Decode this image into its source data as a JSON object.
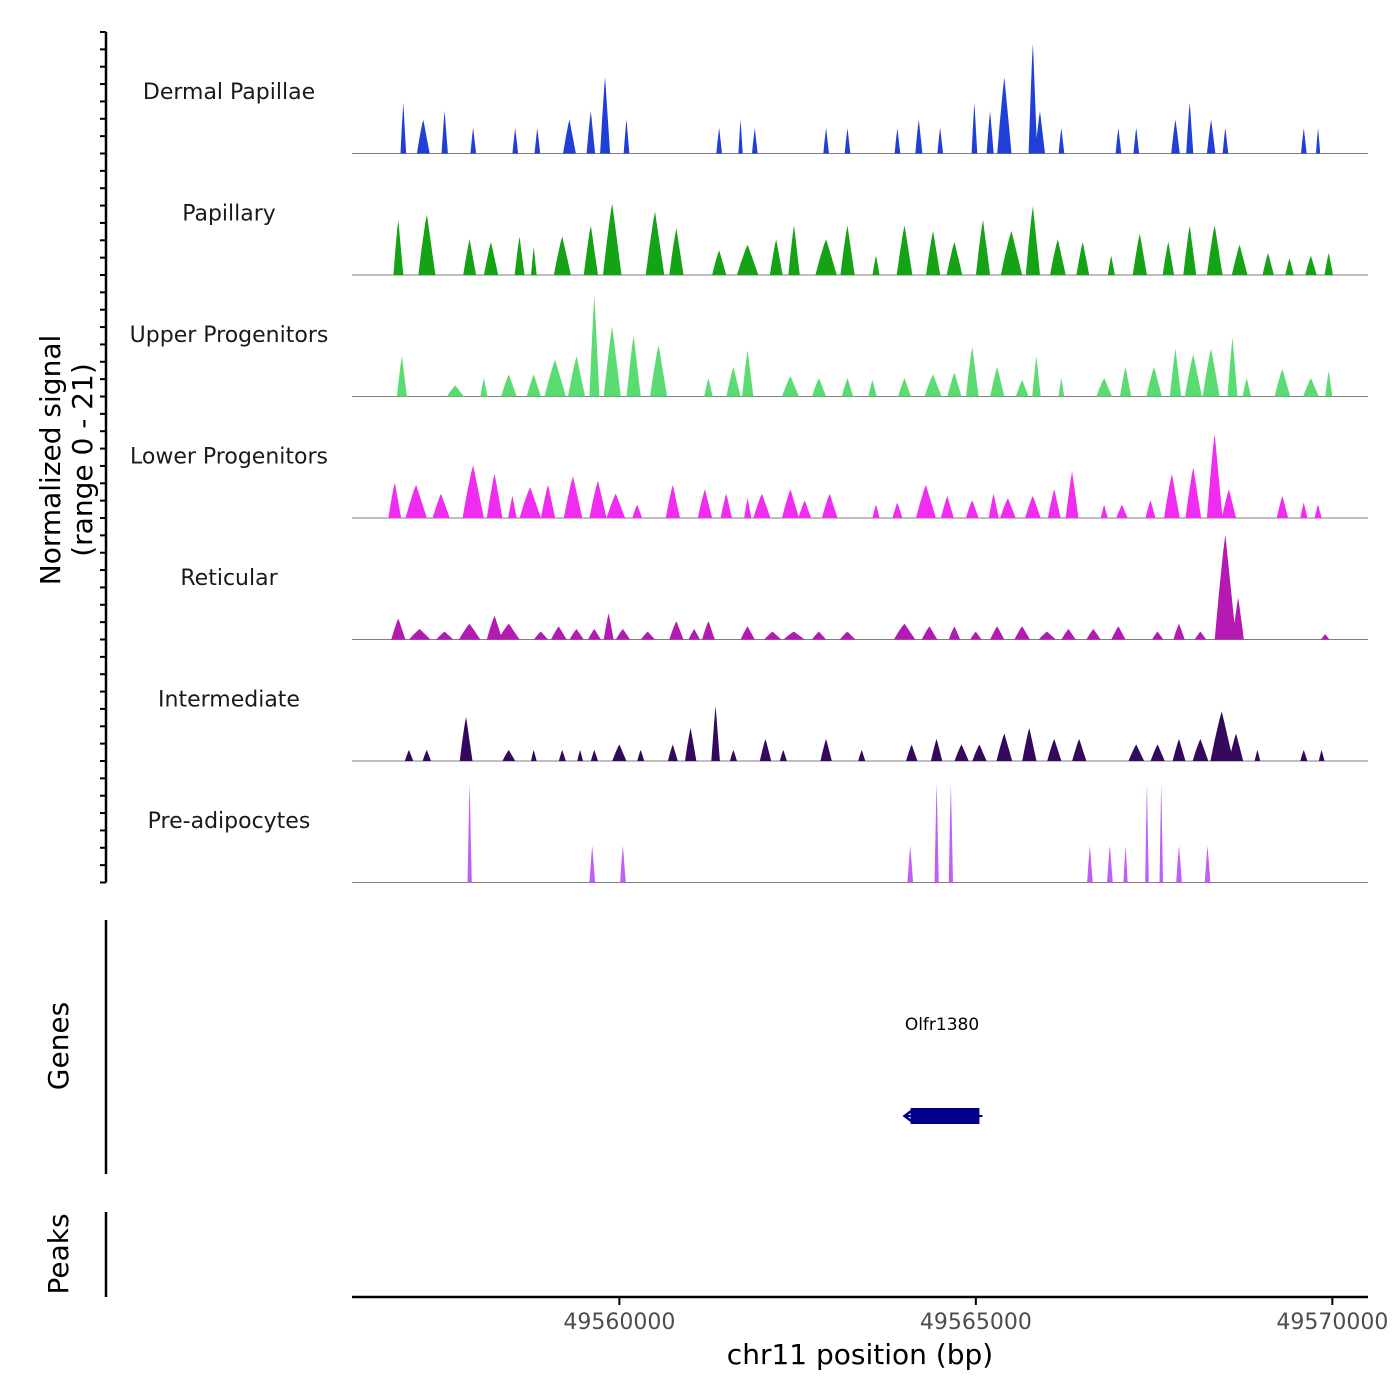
{
  "chart_data": {
    "type": "area",
    "title": "",
    "chromosome": "chr11",
    "xlabel": "chr11 position (bp)",
    "ylabel_line1": "Normalized signal",
    "ylabel_line2": "(range 0 - 21)",
    "ylim": [
      0,
      21
    ],
    "xlim": [
      49556250,
      49570500
    ],
    "x_ticks": [
      49560000,
      49565000,
      49570000
    ],
    "x_tick_labels": [
      "49560000",
      "49565000",
      "49570000"
    ],
    "panel_labels": {
      "genes": "Genes",
      "peaks": "Peaks"
    },
    "series": [
      {
        "name": "Dermal Papillae",
        "color": "#1f3fd6",
        "max": 13,
        "peaks": [
          [
            49556970,
            6,
            40
          ],
          [
            49557250,
            4,
            90
          ],
          [
            49557550,
            5,
            45
          ],
          [
            49557950,
            3,
            40
          ],
          [
            49558540,
            3,
            40
          ],
          [
            49558850,
            3,
            40
          ],
          [
            49559300,
            4,
            90
          ],
          [
            49559600,
            5,
            60
          ],
          [
            49559800,
            9,
            70
          ],
          [
            49560100,
            4,
            40
          ],
          [
            49561400,
            3,
            40
          ],
          [
            49561700,
            4,
            30
          ],
          [
            49561900,
            3,
            40
          ],
          [
            49562900,
            3,
            40
          ],
          [
            49563200,
            3,
            40
          ],
          [
            49563900,
            3,
            40
          ],
          [
            49564200,
            4,
            50
          ],
          [
            49564500,
            3,
            40
          ],
          [
            49564980,
            6,
            40
          ],
          [
            49565200,
            5,
            50
          ],
          [
            49565400,
            9,
            100
          ],
          [
            49565800,
            13,
            60
          ],
          [
            49565900,
            5,
            70
          ],
          [
            49566200,
            3,
            40
          ],
          [
            49567000,
            3,
            40
          ],
          [
            49567250,
            3,
            40
          ],
          [
            49567800,
            4,
            60
          ],
          [
            49568000,
            6,
            50
          ],
          [
            49568300,
            4,
            60
          ],
          [
            49568500,
            3,
            40
          ],
          [
            49569600,
            3,
            40
          ],
          [
            49569800,
            3,
            30
          ]
        ]
      },
      {
        "name": "Papillary",
        "color": "#14a314",
        "max": 4,
        "peaks": [
          [
            49556900,
            2,
            70
          ],
          [
            49557300,
            2.2,
            120
          ],
          [
            49557900,
            1.3,
            90
          ],
          [
            49558200,
            1.2,
            100
          ],
          [
            49558600,
            1.4,
            70
          ],
          [
            49558800,
            1,
            40
          ],
          [
            49559200,
            1.4,
            120
          ],
          [
            49559600,
            1.8,
            100
          ],
          [
            49559900,
            2.6,
            130
          ],
          [
            49560500,
            2.3,
            130
          ],
          [
            49560800,
            1.7,
            100
          ],
          [
            49561400,
            0.9,
            100
          ],
          [
            49561800,
            1.1,
            150
          ],
          [
            49562200,
            1.3,
            90
          ],
          [
            49562450,
            1.8,
            80
          ],
          [
            49562900,
            1.3,
            150
          ],
          [
            49563200,
            1.8,
            100
          ],
          [
            49563600,
            0.7,
            50
          ],
          [
            49564000,
            1.8,
            110
          ],
          [
            49564400,
            1.6,
            100
          ],
          [
            49564700,
            1.2,
            110
          ],
          [
            49565100,
            2,
            100
          ],
          [
            49565500,
            1.6,
            150
          ],
          [
            49565800,
            2.5,
            100
          ],
          [
            49566150,
            1.3,
            110
          ],
          [
            49566500,
            1.2,
            90
          ],
          [
            49566900,
            0.7,
            50
          ],
          [
            49567300,
            1.5,
            100
          ],
          [
            49567700,
            1.2,
            80
          ],
          [
            49568000,
            1.8,
            90
          ],
          [
            49568350,
            1.8,
            110
          ],
          [
            49568700,
            1.1,
            110
          ],
          [
            49569100,
            0.8,
            80
          ],
          [
            49569400,
            0.6,
            60
          ],
          [
            49569700,
            0.7,
            80
          ],
          [
            49569950,
            0.8,
            60
          ]
        ]
      },
      {
        "name": "Upper Progenitors",
        "color": "#5bdc72",
        "max": 6,
        "peaks": [
          [
            49556950,
            2.2,
            70
          ],
          [
            49557700,
            0.6,
            120
          ],
          [
            49558100,
            1,
            50
          ],
          [
            49558450,
            1.2,
            110
          ],
          [
            49558800,
            1.2,
            100
          ],
          [
            49559100,
            2,
            150
          ],
          [
            49559400,
            2.2,
            120
          ],
          [
            49559650,
            5.5,
            70
          ],
          [
            49559900,
            3.8,
            120
          ],
          [
            49560200,
            3.3,
            100
          ],
          [
            49560550,
            2.8,
            120
          ],
          [
            49561250,
            1,
            60
          ],
          [
            49561600,
            1.6,
            100
          ],
          [
            49561800,
            2.5,
            80
          ],
          [
            49562400,
            1.1,
            120
          ],
          [
            49562800,
            1,
            100
          ],
          [
            49563200,
            1,
            80
          ],
          [
            49563550,
            0.9,
            60
          ],
          [
            49564000,
            1,
            90
          ],
          [
            49564400,
            1.2,
            120
          ],
          [
            49564700,
            1.3,
            100
          ],
          [
            49564950,
            2.7,
            90
          ],
          [
            49565300,
            1.6,
            100
          ],
          [
            49565650,
            0.9,
            90
          ],
          [
            49565850,
            2.2,
            60
          ],
          [
            49566200,
            1,
            40
          ],
          [
            49566800,
            1,
            110
          ],
          [
            49567100,
            1.6,
            80
          ],
          [
            49567500,
            1.6,
            110
          ],
          [
            49567800,
            2.6,
            80
          ],
          [
            49568050,
            2.3,
            120
          ],
          [
            49568300,
            2.6,
            120
          ],
          [
            49568600,
            3.2,
            70
          ],
          [
            49568800,
            1,
            60
          ],
          [
            49569300,
            1.5,
            110
          ],
          [
            49569700,
            1,
            110
          ],
          [
            49569950,
            1.4,
            50
          ]
        ]
      },
      {
        "name": "Lower Progenitors",
        "color": "#ef2cef",
        "max": 5,
        "peaks": [
          [
            49556850,
            1.6,
            90
          ],
          [
            49557150,
            1.5,
            150
          ],
          [
            49557500,
            1.1,
            120
          ],
          [
            49557950,
            2.4,
            150
          ],
          [
            49558250,
            2,
            110
          ],
          [
            49558500,
            1,
            60
          ],
          [
            49558750,
            1.4,
            150
          ],
          [
            49559000,
            1.5,
            100
          ],
          [
            49559350,
            1.9,
            130
          ],
          [
            49559700,
            1.7,
            120
          ],
          [
            49559950,
            1.1,
            130
          ],
          [
            49560250,
            0.6,
            70
          ],
          [
            49560750,
            1.5,
            100
          ],
          [
            49561200,
            1.3,
            100
          ],
          [
            49561500,
            1.1,
            80
          ],
          [
            49561800,
            0.9,
            50
          ],
          [
            49562000,
            1.1,
            120
          ],
          [
            49562400,
            1.3,
            120
          ],
          [
            49562600,
            0.8,
            90
          ],
          [
            49562950,
            1.1,
            110
          ],
          [
            49563600,
            0.6,
            50
          ],
          [
            49563900,
            0.7,
            70
          ],
          [
            49564300,
            1.5,
            140
          ],
          [
            49564600,
            1,
            90
          ],
          [
            49564950,
            0.8,
            90
          ],
          [
            49565250,
            1.1,
            70
          ],
          [
            49565450,
            0.9,
            110
          ],
          [
            49565800,
            1,
            110
          ],
          [
            49566100,
            1.3,
            90
          ],
          [
            49566350,
            2.1,
            90
          ],
          [
            49566800,
            0.6,
            50
          ],
          [
            49567050,
            0.6,
            80
          ],
          [
            49567450,
            0.8,
            70
          ],
          [
            49567750,
            2,
            110
          ],
          [
            49568050,
            2.3,
            110
          ],
          [
            49568350,
            3.8,
            110
          ],
          [
            49568550,
            1.3,
            100
          ],
          [
            49569300,
            1,
            80
          ],
          [
            49569600,
            0.7,
            50
          ],
          [
            49569800,
            0.6,
            50
          ]
        ]
      },
      {
        "name": "Reticular",
        "color": "#b419b4",
        "max": 21,
        "peaks": [
          [
            49556900,
            4,
            100
          ],
          [
            49557200,
            2,
            150
          ],
          [
            49557550,
            1.5,
            120
          ],
          [
            49557900,
            3,
            150
          ],
          [
            49558250,
            4.5,
            110
          ],
          [
            49558450,
            3,
            150
          ],
          [
            49558900,
            1.5,
            100
          ],
          [
            49559150,
            2.5,
            110
          ],
          [
            49559400,
            2,
            100
          ],
          [
            49559650,
            2,
            90
          ],
          [
            49559850,
            5,
            70
          ],
          [
            49560050,
            2,
            100
          ],
          [
            49560400,
            1.5,
            100
          ],
          [
            49560800,
            3.5,
            100
          ],
          [
            49561050,
            2,
            80
          ],
          [
            49561250,
            3.5,
            90
          ],
          [
            49561800,
            2.5,
            100
          ],
          [
            49562150,
            1.5,
            120
          ],
          [
            49562450,
            1.5,
            150
          ],
          [
            49562800,
            1.5,
            100
          ],
          [
            49563200,
            1.5,
            110
          ],
          [
            49564000,
            3,
            150
          ],
          [
            49564350,
            2.5,
            110
          ],
          [
            49564700,
            2.5,
            80
          ],
          [
            49565000,
            1.5,
            80
          ],
          [
            49565300,
            2.5,
            100
          ],
          [
            49565650,
            2.5,
            110
          ],
          [
            49566000,
            1.5,
            120
          ],
          [
            49566300,
            2,
            100
          ],
          [
            49566650,
            2,
            100
          ],
          [
            49567000,
            2.5,
            100
          ],
          [
            49567550,
            1.5,
            80
          ],
          [
            49567850,
            3,
            80
          ],
          [
            49568150,
            1.5,
            80
          ],
          [
            49568500,
            20,
            150
          ],
          [
            49568680,
            8,
            80
          ],
          [
            49569900,
            1,
            60
          ]
        ]
      },
      {
        "name": "Intermediate",
        "color": "#34095d",
        "max": 10,
        "peaks": [
          [
            49557050,
            1,
            60
          ],
          [
            49557300,
            1,
            60
          ],
          [
            49557850,
            4,
            90
          ],
          [
            49558450,
            1,
            90
          ],
          [
            49558800,
            1,
            40
          ],
          [
            49559200,
            1,
            50
          ],
          [
            49559450,
            1,
            40
          ],
          [
            49559650,
            1,
            50
          ],
          [
            49560000,
            1.5,
            100
          ],
          [
            49560300,
            1,
            50
          ],
          [
            49560750,
            1.5,
            70
          ],
          [
            49561000,
            3,
            80
          ],
          [
            49561350,
            5,
            60
          ],
          [
            49561600,
            1,
            50
          ],
          [
            49562050,
            2,
            80
          ],
          [
            49562300,
            1,
            50
          ],
          [
            49562900,
            2,
            80
          ],
          [
            49563400,
            1,
            50
          ],
          [
            49564100,
            1.5,
            80
          ],
          [
            49564450,
            2,
            80
          ],
          [
            49564800,
            1.5,
            100
          ],
          [
            49565050,
            1.5,
            100
          ],
          [
            49565400,
            2.5,
            110
          ],
          [
            49565750,
            3,
            100
          ],
          [
            49566100,
            2,
            100
          ],
          [
            49566450,
            2,
            100
          ],
          [
            49567250,
            1.5,
            110
          ],
          [
            49567550,
            1.5,
            100
          ],
          [
            49567850,
            2,
            90
          ],
          [
            49568150,
            2,
            110
          ],
          [
            49568450,
            4.5,
            160
          ],
          [
            49568650,
            2.5,
            100
          ],
          [
            49568950,
            1,
            40
          ],
          [
            49569600,
            1,
            50
          ],
          [
            49569850,
            1,
            40
          ]
        ]
      },
      {
        "name": "Pre-adipocytes",
        "color": "#c15ef5",
        "max": 3,
        "peaks": [
          [
            49557900,
            2.7,
            30
          ],
          [
            49559620,
            1,
            40
          ],
          [
            49560050,
            1,
            40
          ],
          [
            49564080,
            1,
            40
          ],
          [
            49564450,
            2.7,
            30
          ],
          [
            49564650,
            2.7,
            30
          ],
          [
            49566600,
            1,
            40
          ],
          [
            49566880,
            1,
            40
          ],
          [
            49567100,
            1,
            30
          ],
          [
            49567400,
            2.7,
            25
          ],
          [
            49567600,
            2.7,
            25
          ],
          [
            49567850,
            1,
            40
          ],
          [
            49568250,
            1,
            40
          ]
        ]
      }
    ],
    "genes": [
      {
        "name": "Olfr1380",
        "start": 49564000,
        "end": 49565050,
        "strand": "-",
        "color": "#00008b"
      }
    ],
    "peaks_track": []
  }
}
